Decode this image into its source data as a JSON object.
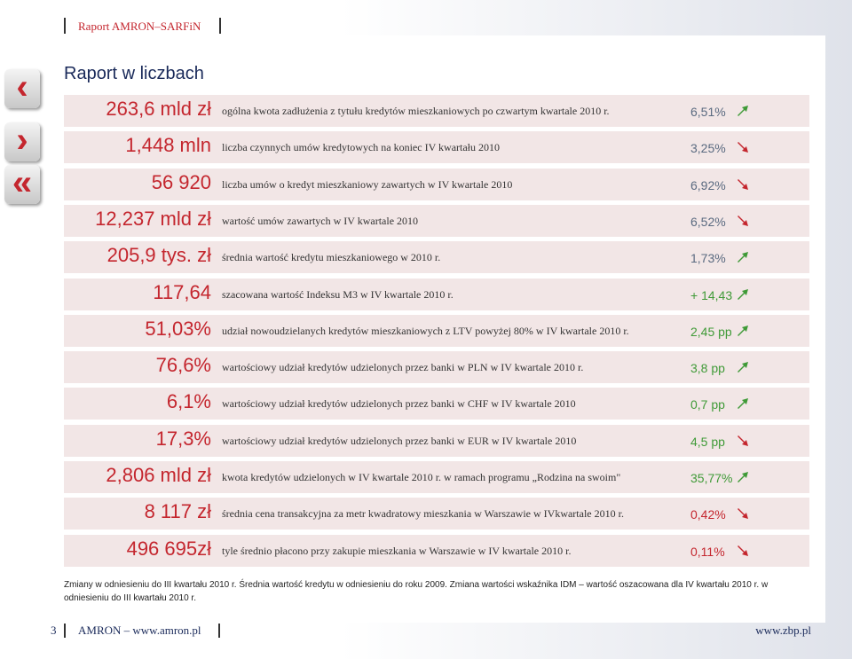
{
  "header": {
    "title": "Raport AMRON–SARFiN"
  },
  "nav": [
    {
      "symbol": "‹"
    },
    {
      "symbol": "›"
    },
    {
      "symbol": "«"
    }
  ],
  "title": "Raport w liczbach",
  "rows": [
    {
      "value": "263,6 mld zł",
      "description": "ogólna kwota zadłużenia z tytułu kredytów mieszkaniowych po czwartym kwartale 2010 r.",
      "change": "6,51%",
      "trend": "up",
      "color": "#5a6a80"
    },
    {
      "value": "1,448 mln",
      "description": "liczba czynnych umów kredytowych na koniec IV kwartału 2010",
      "change": "3,25%",
      "trend": "down",
      "color": "#5a6a80"
    },
    {
      "value": "56 920",
      "description": "liczba umów o kredyt mieszkaniowy zawartych w IV kwartale 2010",
      "change": "6,92%",
      "trend": "down",
      "color": "#5a6a80"
    },
    {
      "value": "12,237 mld zł",
      "description": "wartość umów zawartych w IV kwartale 2010",
      "change": "6,52%",
      "trend": "down",
      "color": "#5a6a80"
    },
    {
      "value": "205,9 tys. zł",
      "description": "średnia wartość kredytu mieszkaniowego w 2010 r.",
      "change": "1,73%",
      "trend": "up",
      "color": "#5a6a80"
    },
    {
      "value": "117,64",
      "description": "szacowana wartość Indeksu M3 w IV kwartale 2010 r.",
      "change": "+ 14,43",
      "trend": "up",
      "color": "#3f9a37"
    },
    {
      "value": "51,03%",
      "description": "udział nowoudzielanych kredytów mieszkaniowych z LTV powyżej 80% w IV kwartale 2010 r.",
      "change": "2,45 pp",
      "trend": "up",
      "color": "#3f9a37"
    },
    {
      "value": "76,6%",
      "description": "wartościowy udział kredytów udzielonych przez banki w PLN w IV kwartale 2010 r.",
      "change": "3,8 pp",
      "trend": "up",
      "color": "#3f9a37"
    },
    {
      "value": "6,1%",
      "description": "wartościowy udział kredytów udzielonych przez banki w CHF w IV kwartale 2010",
      "change": "0,7 pp",
      "trend": "up",
      "color": "#3f9a37"
    },
    {
      "value": "17,3%",
      "description": "wartościowy udział kredytów udzielonych przez banki w EUR w IV kwartale 2010",
      "change": "4,5 pp",
      "trend": "down",
      "color": "#3f9a37"
    },
    {
      "value": "2,806 mld zł",
      "description": "kwota kredytów udzielonych w IV kwartale 2010 r. w ramach programu „Rodzina na swoim\"",
      "change": "35,77%",
      "trend": "up",
      "color": "#3f9a37"
    },
    {
      "value": "8 117 zł",
      "description": "średnia cena transakcyjna za metr kwadratowy mieszkania w Warszawie w IVkwartale 2010 r.",
      "change": "0,42%",
      "trend": "down",
      "color": "#c4262e"
    },
    {
      "value": "496 695zł",
      "description": "tyle średnio płacono przy zakupie mieszkania w Warszawie w IV kwartale 2010 r.",
      "change": "0,11%",
      "trend": "down",
      "color": "#c4262e"
    }
  ],
  "note": "Zmiany w odniesieniu do III kwartału 2010 r. Średnia wartość kredytu w odniesieniu do roku 2009. Zmiana wartości wskaźnika IDM – wartość oszacowana dla IV kwartału 2010 r. w odniesieniu do III kwartału 2010 r.",
  "footer": {
    "page": "3",
    "left": "AMRON – www.amron.pl",
    "right": "www.zbp.pl"
  }
}
